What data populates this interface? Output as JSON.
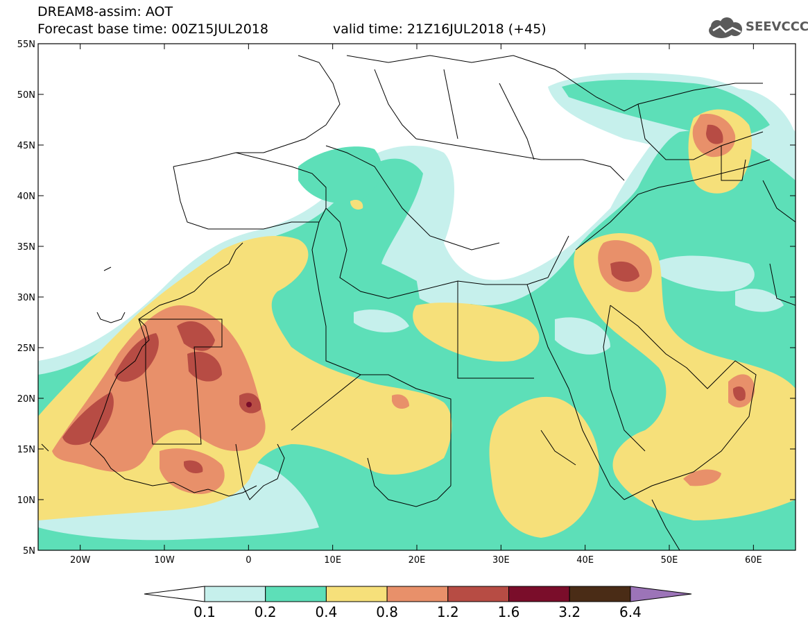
{
  "header": {
    "line1": "DREAM8-assim: AOT",
    "line2": "Forecast base time: 00Z15JUL2018",
    "valid": "valid time: 21Z16JUL2018 (+45)"
  },
  "logo": {
    "text": "SEEVCCC",
    "icon": "cloud-icon"
  },
  "map": {
    "lat_labels": [
      "55N",
      "50N",
      "45N",
      "40N",
      "35N",
      "30N",
      "25N",
      "20N",
      "15N",
      "10N",
      "5N"
    ],
    "lon_labels": [
      "20W",
      "10W",
      "0",
      "10E",
      "20E",
      "30E",
      "40E",
      "50E",
      "60E"
    ],
    "lat_range": [
      5,
      55
    ],
    "lon_range": [
      -25,
      65
    ]
  },
  "colorbar": {
    "labels": [
      "0.1",
      "0.2",
      "0.4",
      "0.8",
      "1.2",
      "1.6",
      "3.2",
      "6.4"
    ],
    "colors": [
      "#ffffff",
      "#c6f0ec",
      "#5ddfb8",
      "#f6e07a",
      "#e8906a",
      "#b74c44",
      "#7a0d2a",
      "#4a2c16",
      "#9c74b8"
    ]
  }
}
